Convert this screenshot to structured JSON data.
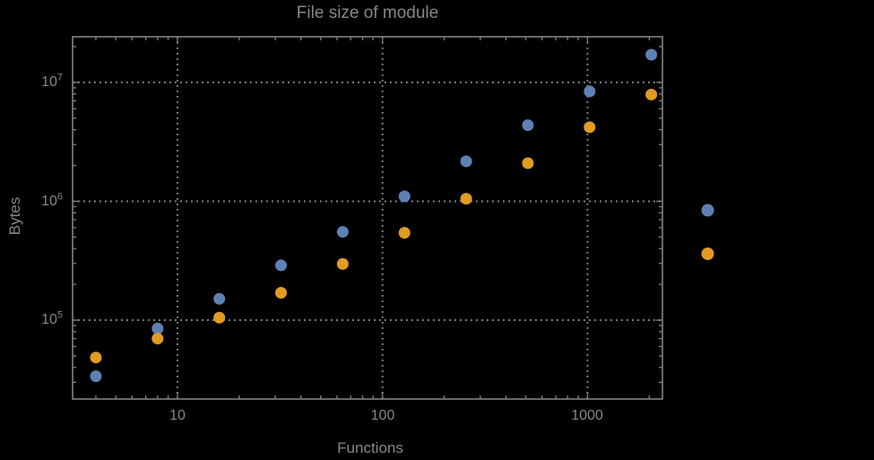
{
  "window": {
    "background_color": "#000000",
    "text_color": "#878787",
    "frame_color": "#828282",
    "gridline_color": "#8a8a8a"
  },
  "axes": {
    "x": {
      "label": "Functions",
      "scale": "log",
      "tick_labels": [
        "10",
        "100",
        "1000"
      ],
      "tick_values": [
        10,
        100,
        1000
      ]
    },
    "y": {
      "label": "Bytes",
      "scale": "log",
      "tick_labels": [
        {
          "base": "10",
          "exp": "5"
        },
        {
          "base": "10",
          "exp": "6"
        },
        {
          "base": "10",
          "exp": "7"
        }
      ],
      "tick_values": [
        100000,
        1000000,
        10000000
      ]
    }
  },
  "chart_data": {
    "type": "scatter",
    "title": "File size of module",
    "xlabel": "Functions",
    "ylabel": "Bytes",
    "xscale": "log",
    "yscale": "log",
    "xlim": [
      3.08,
      2320
    ],
    "ylim": [
      21700,
      24200000
    ],
    "grid": "dotted-major",
    "x": [
      4,
      8,
      16,
      32,
      64,
      128,
      256,
      512,
      1024,
      2048
    ],
    "series": [
      {
        "name": "series-1-blue",
        "color": "#5e81b5",
        "values": [
          33700,
          85000,
          151000,
          289000,
          553000,
          1100000,
          2170000,
          4360000,
          8400000,
          17100000
        ]
      },
      {
        "name": "series-2-orange",
        "color": "#e19c24",
        "values": [
          48500,
          70000,
          105000,
          170000,
          297000,
          543000,
          1050000,
          2090000,
          4200000,
          7900000
        ]
      }
    ],
    "legend_position": "right-outside",
    "legend": [
      {
        "marker_color": "#5e81b5",
        "label": ""
      },
      {
        "marker_color": "#e19c24",
        "label": ""
      }
    ]
  }
}
